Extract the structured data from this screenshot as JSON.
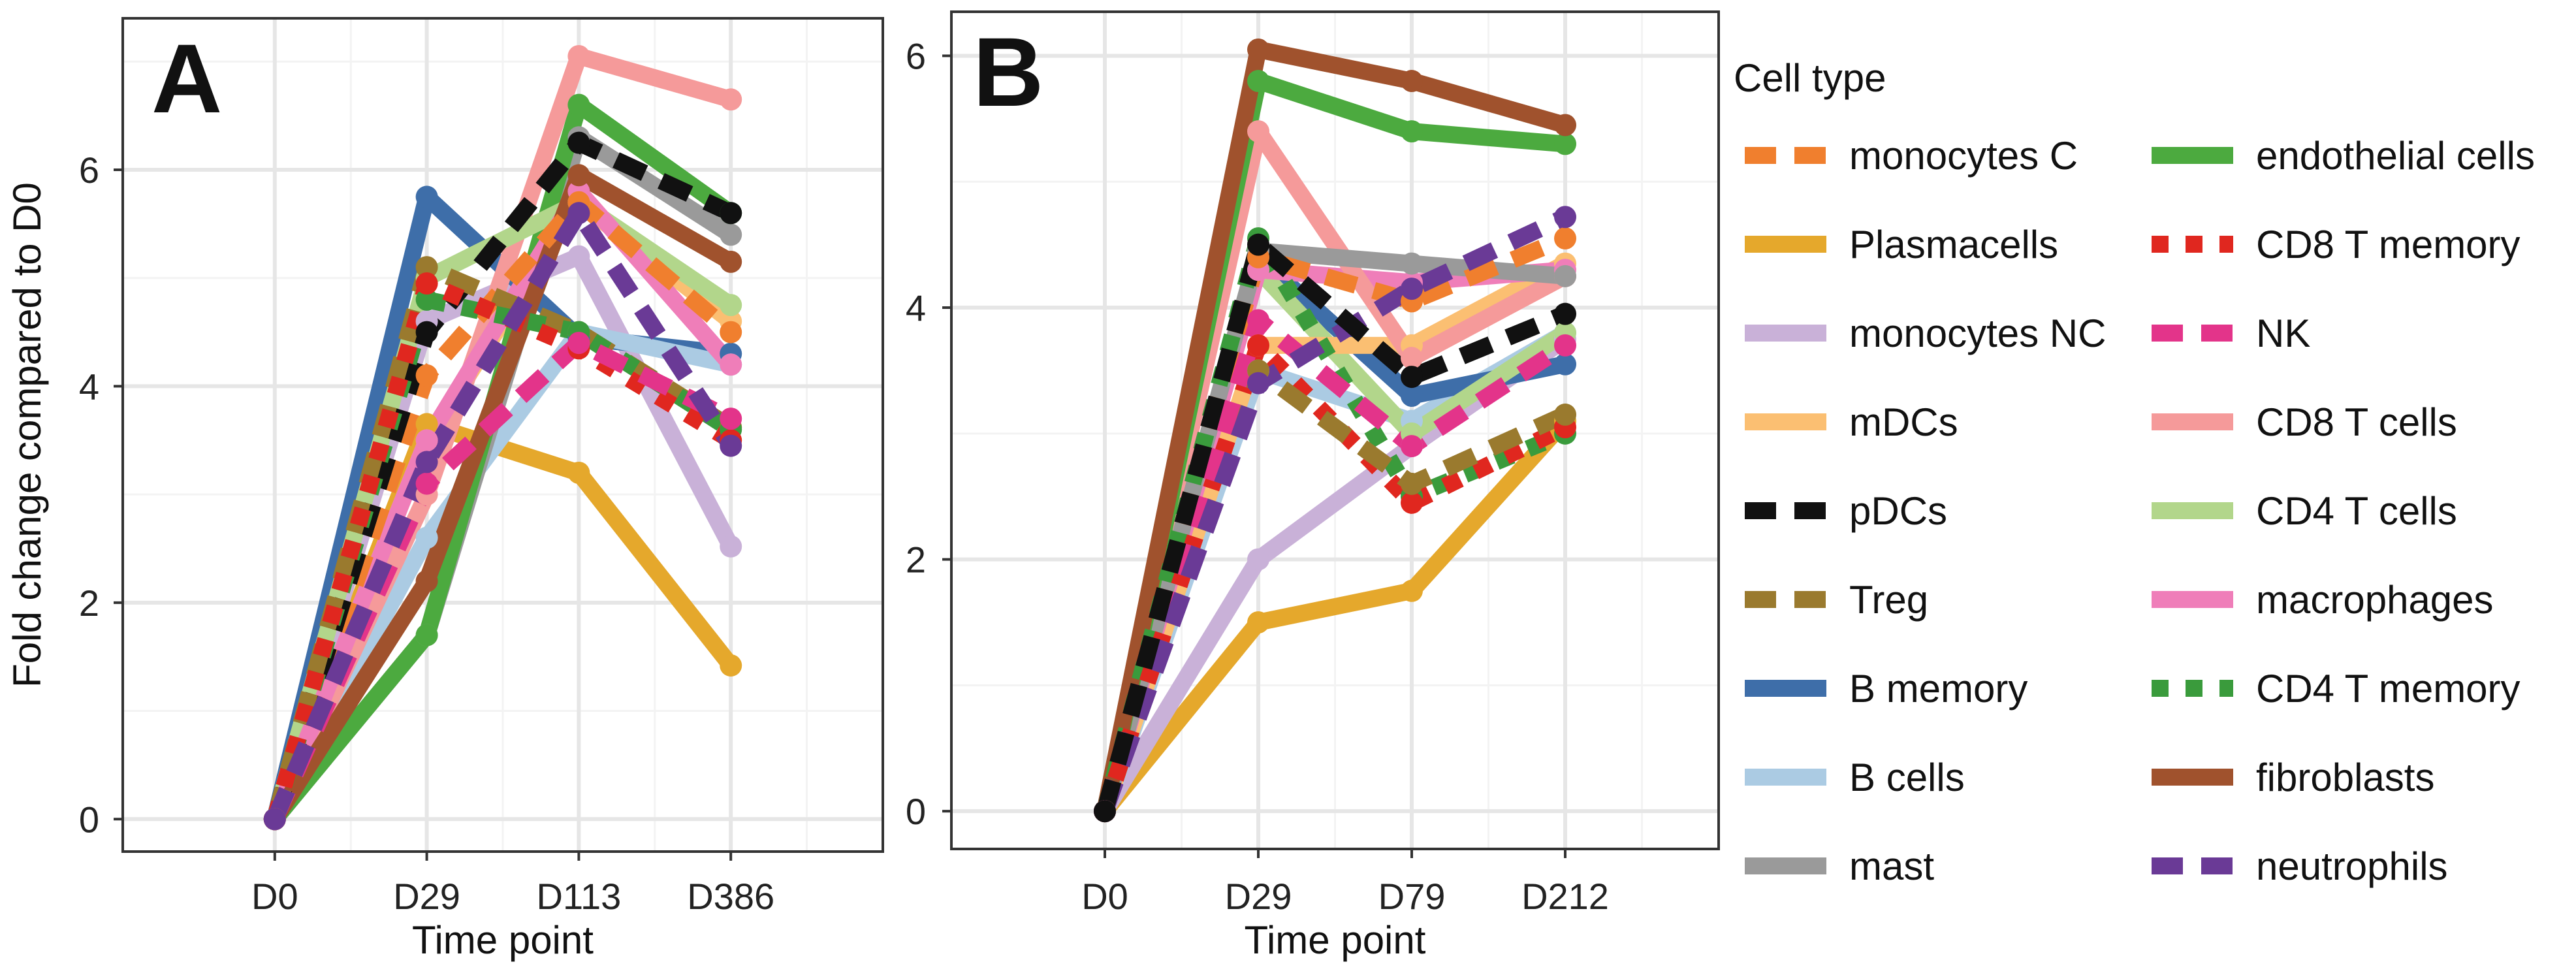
{
  "legend": {
    "title": "Cell type",
    "columns": [
      [
        "monocytes C",
        "Plasmacells",
        "monocytes NC",
        "mDCs",
        "pDCs",
        "Treg",
        "B memory",
        "B cells",
        "mast"
      ],
      [
        "endothelial cells",
        "CD8 T memory",
        "NK",
        "CD8 T cells",
        "CD4 T cells",
        "macrophages",
        "CD4 T memory",
        "fibroblasts",
        "neutrophils"
      ]
    ]
  },
  "series_styles": {
    "monocytes C": {
      "color": "#f07f2e",
      "dash": "dashed"
    },
    "Plasmacells": {
      "color": "#e5a82c",
      "dash": "solid"
    },
    "monocytes NC": {
      "color": "#c9b1d8",
      "dash": "solid"
    },
    "mDCs": {
      "color": "#fbbf72",
      "dash": "solid"
    },
    "pDCs": {
      "color": "#111111",
      "dash": "dashed"
    },
    "Treg": {
      "color": "#9a7a2e",
      "dash": "dashed"
    },
    "B memory": {
      "color": "#3e6ea9",
      "dash": "solid"
    },
    "B cells": {
      "color": "#abcbe3",
      "dash": "solid"
    },
    "mast": {
      "color": "#9a9a9a",
      "dash": "solid"
    },
    "endothelial cells": {
      "color": "#4caa3f",
      "dash": "solid"
    },
    "CD8 T memory": {
      "color": "#e0271f",
      "dash": "dotted"
    },
    "NK": {
      "color": "#e3348a",
      "dash": "dashed"
    },
    "CD8 T cells": {
      "color": "#f59a9a",
      "dash": "solid"
    },
    "CD4 T cells": {
      "color": "#b2d68b",
      "dash": "solid"
    },
    "macrophages": {
      "color": "#ef7eb9",
      "dash": "solid"
    },
    "CD4 T memory": {
      "color": "#3a9b3c",
      "dash": "dotted"
    },
    "fibroblasts": {
      "color": "#a0522d",
      "dash": "solid"
    },
    "neutrophils": {
      "color": "#6a3a96",
      "dash": "dashed"
    }
  },
  "chart_data": [
    {
      "type": "line",
      "panel_label": "A",
      "xlabel": "Time point",
      "ylabel": "Fold change compared to D0",
      "categories": [
        "D0",
        "D29",
        "D113",
        "D386"
      ],
      "ylim": [
        -0.3,
        7.4
      ],
      "yticks": [
        0,
        2,
        4,
        6
      ],
      "grid": true,
      "series": [
        {
          "name": "Plasmacells",
          "values": [
            0,
            3.65,
            3.2,
            1.42
          ]
        },
        {
          "name": "monocytes NC",
          "values": [
            0,
            4.6,
            5.2,
            2.52
          ]
        },
        {
          "name": "B memory",
          "values": [
            0,
            5.75,
            4.45,
            4.3
          ]
        },
        {
          "name": "B cells",
          "values": [
            0,
            2.6,
            4.5,
            4.2
          ]
        },
        {
          "name": "mDCs",
          "values": [
            0,
            3.5,
            5.7,
            4.6
          ]
        },
        {
          "name": "mast",
          "values": [
            0,
            1.7,
            6.3,
            5.4
          ]
        },
        {
          "name": "endothelial cells",
          "values": [
            0,
            1.7,
            6.6,
            5.6
          ]
        },
        {
          "name": "CD8 T cells",
          "values": [
            0,
            3.0,
            7.05,
            6.65
          ]
        },
        {
          "name": "CD4 T cells",
          "values": [
            0,
            5.0,
            5.7,
            4.75
          ]
        },
        {
          "name": "macrophages",
          "values": [
            0,
            3.5,
            5.8,
            4.2
          ]
        },
        {
          "name": "fibroblasts",
          "values": [
            0,
            2.2,
            5.95,
            5.15
          ]
        },
        {
          "name": "monocytes C",
          "values": [
            0,
            4.1,
            5.7,
            4.5
          ]
        },
        {
          "name": "pDCs",
          "values": [
            0,
            4.5,
            6.25,
            5.6
          ]
        },
        {
          "name": "Treg",
          "values": [
            0,
            5.1,
            4.5,
            3.62
          ]
        },
        {
          "name": "CD4 T memory",
          "values": [
            0,
            4.8,
            4.5,
            3.6
          ]
        },
        {
          "name": "CD8 T memory",
          "values": [
            0,
            4.95,
            4.35,
            3.5
          ]
        },
        {
          "name": "NK",
          "values": [
            0,
            3.1,
            4.4,
            3.7
          ]
        },
        {
          "name": "neutrophils",
          "values": [
            0,
            3.3,
            5.6,
            3.45
          ]
        }
      ]
    },
    {
      "type": "line",
      "panel_label": "B",
      "xlabel": "Time point",
      "ylabel": "",
      "categories": [
        "D0",
        "D29",
        "D79",
        "D212"
      ],
      "ylim": [
        -0.3,
        6.35
      ],
      "yticks": [
        0,
        2,
        4,
        6
      ],
      "grid": true,
      "series": [
        {
          "name": "Plasmacells",
          "values": [
            0,
            1.5,
            1.75,
            3.1
          ]
        },
        {
          "name": "monocytes NC",
          "values": [
            0,
            2.0,
            2.9,
            3.75
          ]
        },
        {
          "name": "B cells",
          "values": [
            0,
            3.5,
            3.1,
            3.8
          ]
        },
        {
          "name": "B memory",
          "values": [
            0,
            4.4,
            3.3,
            3.55
          ]
        },
        {
          "name": "CD4 T cells",
          "values": [
            0,
            4.3,
            3.0,
            3.8
          ]
        },
        {
          "name": "mDCs",
          "values": [
            0,
            3.7,
            3.7,
            4.35
          ]
        },
        {
          "name": "macrophages",
          "values": [
            0,
            4.3,
            4.2,
            4.3
          ]
        },
        {
          "name": "CD8 T cells",
          "values": [
            0,
            5.4,
            3.6,
            4.25
          ]
        },
        {
          "name": "mast",
          "values": [
            0,
            4.45,
            4.35,
            4.25
          ]
        },
        {
          "name": "monocytes C",
          "values": [
            0,
            4.4,
            4.05,
            4.55
          ]
        },
        {
          "name": "endothelial cells",
          "values": [
            0,
            5.8,
            5.4,
            5.3
          ]
        },
        {
          "name": "fibroblasts",
          "values": [
            0,
            6.05,
            5.8,
            5.45
          ]
        },
        {
          "name": "CD4 T memory",
          "values": [
            0,
            4.55,
            2.5,
            3.0
          ]
        },
        {
          "name": "CD8 T memory",
          "values": [
            0,
            3.7,
            2.45,
            3.05
          ]
        },
        {
          "name": "Treg",
          "values": [
            0,
            3.5,
            2.6,
            3.15
          ]
        },
        {
          "name": "NK",
          "values": [
            0,
            3.9,
            2.9,
            3.7
          ]
        },
        {
          "name": "neutrophils",
          "values": [
            0,
            3.4,
            4.15,
            4.72
          ]
        },
        {
          "name": "pDCs",
          "values": [
            0,
            4.5,
            3.45,
            3.95
          ]
        }
      ]
    }
  ]
}
